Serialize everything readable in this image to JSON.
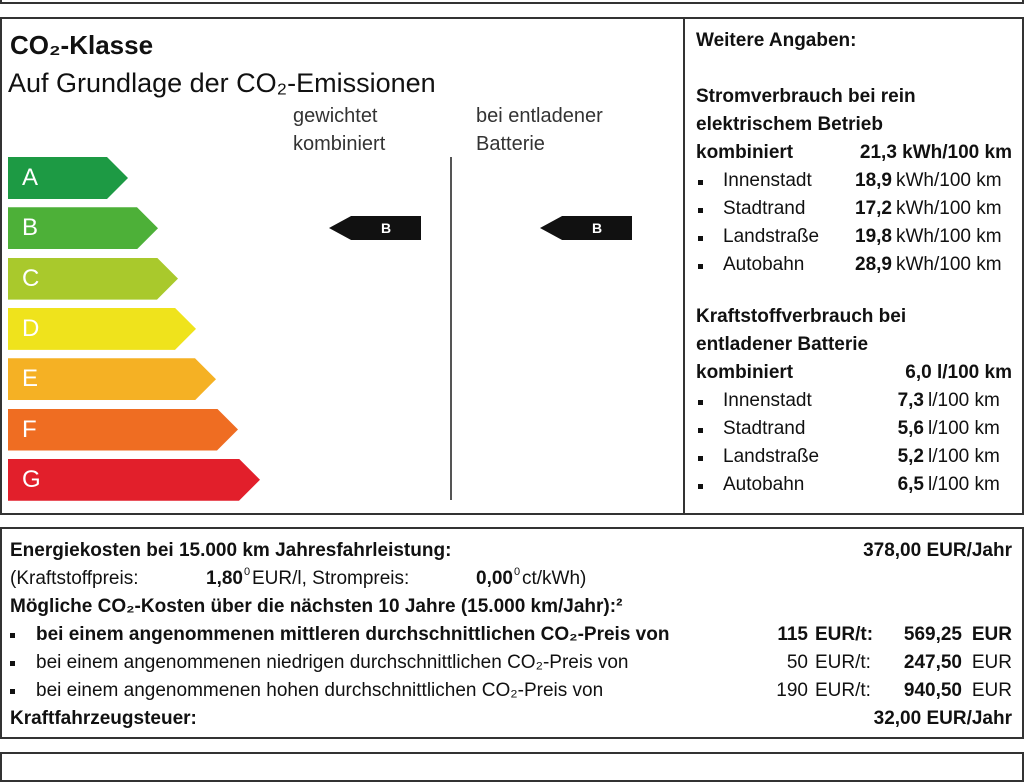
{
  "co2_class": {
    "title": "CO₂-Klasse",
    "subtitle": "Auf Grundlage der CO₂-Emissionen",
    "classes": [
      "A",
      "B",
      "C",
      "D",
      "E",
      "F",
      "G"
    ],
    "columns": [
      {
        "label": [
          "gewichtet",
          "kombiniert"
        ],
        "class": "B"
      },
      {
        "label": [
          "bei entladener",
          "Batterie"
        ],
        "class": "B"
      }
    ]
  },
  "details": {
    "title": "Weitere Angaben:",
    "sections": [
      {
        "heading": [
          "Stromverbrauch bei rein",
          "elektrischem Betrieb"
        ],
        "combined_label": "kombiniert",
        "combined_value": "21,3 kWh/100 km",
        "items": [
          {
            "label": "Innenstadt",
            "value": "18,9",
            "unit": "kWh/100 km"
          },
          {
            "label": "Stadtrand",
            "value": "17,2",
            "unit": "kWh/100 km"
          },
          {
            "label": "Landstraße",
            "value": "19,8",
            "unit": "kWh/100 km"
          },
          {
            "label": "Autobahn",
            "value": "28,9",
            "unit": "kWh/100 km"
          }
        ]
      },
      {
        "heading": [
          "Kraftstoffverbrauch bei",
          "entladener Batterie"
        ],
        "combined_label": "kombiniert",
        "combined_value": "6,0 l/100 km",
        "items": [
          {
            "label": "Innenstadt",
            "value": "7,3",
            "unit": "l/100 km"
          },
          {
            "label": "Stadtrand",
            "value": "5,6",
            "unit": "l/100 km"
          },
          {
            "label": "Landstraße",
            "value": "5,2",
            "unit": "l/100 km"
          },
          {
            "label": "Autobahn",
            "value": "6,5",
            "unit": "l/100 km"
          }
        ]
      }
    ]
  },
  "costs": {
    "energy_label": "Energiekosten bei 15.000 km Jahresfahrleistung:",
    "energy_value": "378,00 EUR/Jahr",
    "fuel_label": "(Kraftstoffpreis:",
    "fuel_price": "1,80",
    "fuel_note": "0",
    "fuel_unit": "EUR/l, Strompreis:",
    "power_price": "0,00",
    "power_note": "0",
    "power_unit": "ct/kWh)",
    "co2_heading": "Mögliche CO₂-Kosten über die nächsten 10 Jahre (15.000 km/Jahr):²",
    "scenarios": [
      {
        "text": "bei einem angenommenen mittleren durchschnittlichen CO₂-Preis von",
        "price": "115",
        "unit": "EUR/t:",
        "total": "569,25",
        "currency": "EUR"
      },
      {
        "text": "bei einem angenommenen niedrigen durchschnittlichen CO₂-Preis von",
        "price": "50",
        "unit": "EUR/t:",
        "total": "247,50",
        "currency": "EUR"
      },
      {
        "text": "bei einem angenommenen hohen durchschnittlichen CO₂-Preis von",
        "price": "190",
        "unit": "EUR/t:",
        "total": "940,50",
        "currency": "EUR"
      }
    ],
    "tax_label": "Kraftfahrzeugsteuer:",
    "tax_value": "32,00 EUR/Jahr"
  }
}
